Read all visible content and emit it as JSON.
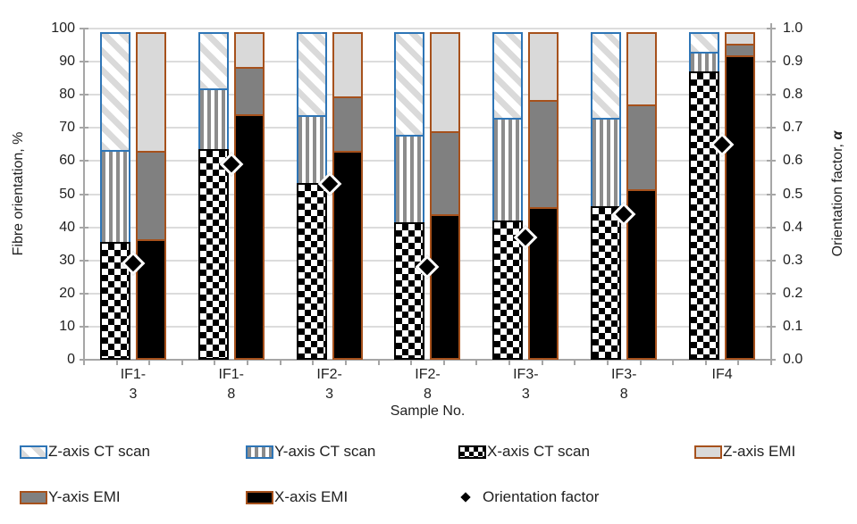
{
  "chart_data": {
    "type": "bar",
    "subtype": "stacked-percent with scatter overlay",
    "title": "",
    "xlabel": "Sample No.",
    "ylabel_left": "Fibre orientation, %",
    "ylabel_right_text": "Orientation factor, ",
    "ylabel_right_symbol": "α",
    "categories": [
      "IF1-3",
      "IF1-8",
      "IF2-3",
      "IF2-8",
      "IF3-3",
      "IF3-8",
      "IF4"
    ],
    "category_label_lines": [
      [
        "IF1-",
        "3"
      ],
      [
        "IF1-",
        "8"
      ],
      [
        "IF2-",
        "3"
      ],
      [
        "IF2-",
        "8"
      ],
      [
        "IF3-",
        "3"
      ],
      [
        "IF3-",
        "8"
      ],
      [
        "IF4"
      ]
    ],
    "left_axis": {
      "min": 0,
      "max": 100,
      "step": 10,
      "ticks": [
        "0",
        "10",
        "20",
        "30",
        "40",
        "50",
        "60",
        "70",
        "80",
        "90",
        "100"
      ]
    },
    "right_axis": {
      "min": 0.0,
      "max": 1.0,
      "step": 0.1,
      "ticks": [
        "0.0",
        "0.1",
        "0.2",
        "0.3",
        "0.4",
        "0.5",
        "0.6",
        "0.7",
        "0.8",
        "0.9",
        "1.0"
      ]
    },
    "grid": "horizontal",
    "legend_position": "bottom",
    "series": [
      {
        "name": "X-axis CT scan",
        "bar": "CT",
        "values": [
          35.5,
          63.5,
          53.5,
          41.5,
          42.0,
          46.5,
          87.0
        ]
      },
      {
        "name": "Y-axis CT scan",
        "bar": "CT",
        "values": [
          28.5,
          19.0,
          21.0,
          27.0,
          31.5,
          27.0,
          6.5
        ]
      },
      {
        "name": "Z-axis CT scan",
        "bar": "CT",
        "values": [
          36.0,
          17.5,
          25.5,
          31.5,
          26.5,
          26.5,
          6.5
        ]
      },
      {
        "name": "X-axis EMI",
        "bar": "EMI",
        "values": [
          36.5,
          74.0,
          63.0,
          44.0,
          46.0,
          51.5,
          92.0
        ]
      },
      {
        "name": "Y-axis EMI",
        "bar": "EMI",
        "values": [
          27.0,
          15.0,
          17.0,
          25.5,
          33.0,
          26.0,
          4.0
        ]
      },
      {
        "name": "Z-axis EMI",
        "bar": "EMI",
        "values": [
          36.5,
          11.0,
          20.0,
          30.5,
          21.0,
          22.5,
          4.0
        ]
      },
      {
        "name": "Orientation factor",
        "type": "scatter",
        "axis": "right",
        "values": [
          0.29,
          0.59,
          0.53,
          0.28,
          0.37,
          0.44,
          0.65
        ]
      }
    ],
    "colors": {
      "ct_border_blue": "#2e75b6",
      "emi_border_brown": "#a6511c",
      "black": "#000000",
      "mid_gray": "#808080",
      "light_gray": "#d9d9d9",
      "gridline": "#dcdcdc",
      "axis_line": "#a6a6a6",
      "text": "#1f1f1f"
    }
  },
  "legend": {
    "row1": [
      {
        "label": "Z-axis CT scan"
      },
      {
        "label": "Y-axis CT scan"
      },
      {
        "label": "X-axis CT scan"
      },
      {
        "label": "Z-axis EMI"
      }
    ],
    "row2": [
      {
        "label": "Y-axis EMI"
      },
      {
        "label": "X-axis EMI"
      },
      {
        "label": "Orientation factor"
      }
    ]
  }
}
